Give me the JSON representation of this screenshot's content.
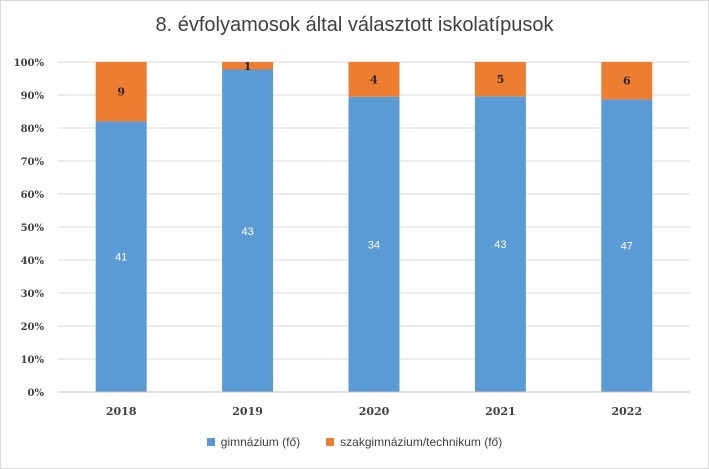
{
  "chart_data": {
    "type": "bar",
    "stacked": "percent",
    "title": "8. évfolyamosok által választott iskolatípusok",
    "xlabel": "",
    "ylabel": "",
    "ylim": [
      0,
      100
    ],
    "yticks": [
      "0%",
      "10%",
      "20%",
      "30%",
      "40%",
      "50%",
      "60%",
      "70%",
      "80%",
      "90%",
      "100%"
    ],
    "categories": [
      "2018",
      "2019",
      "2020",
      "2021",
      "2022"
    ],
    "series": [
      {
        "name": "gimnázium (fő)",
        "values": [
          41,
          43,
          34,
          43,
          47
        ],
        "color": "#5b9bd5"
      },
      {
        "name": "szakgimnázium/technikum (fő)",
        "values": [
          9,
          1,
          4,
          5,
          6
        ],
        "color": "#ed7d31"
      }
    ],
    "grid": true,
    "legend_position": "bottom"
  }
}
